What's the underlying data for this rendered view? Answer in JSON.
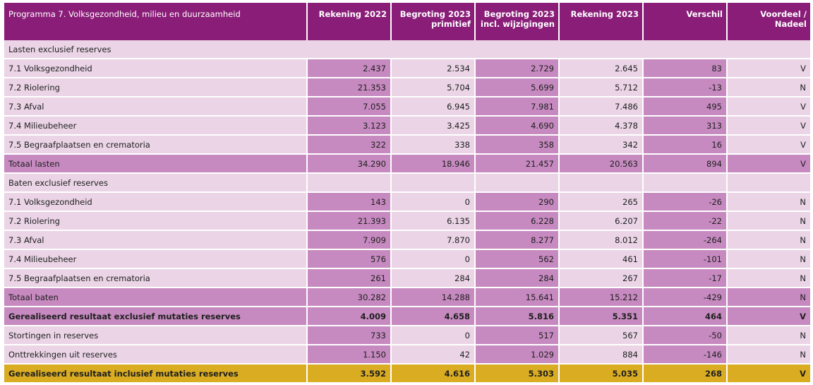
{
  "table": {
    "header": {
      "title": "Programma 7. Volksgezondheid, milieu en duurzaamheid",
      "col1": "Rekening 2022",
      "col2_line1": "Begroting 2023",
      "col2_line2": "primitief",
      "col3_line1": "Begroting 2023",
      "col3_line2": "incl. wijzigingen",
      "col4": "Rekening 2023",
      "col5": "Verschil",
      "col6": "Voordeel / Nadeel"
    },
    "lasten_header": "Lasten exclusief reserves",
    "lasten": [
      {
        "label": "7.1 Volksgezondheid",
        "r2022": "2.437",
        "b2023p": "2.534",
        "b2023w": "2.729",
        "r2023": "2.645",
        "verschil": "83",
        "vn": "V"
      },
      {
        "label": "7.2 Riolering",
        "r2022": "21.353",
        "b2023p": "5.704",
        "b2023w": "5.699",
        "r2023": "5.712",
        "verschil": "-13",
        "vn": "N"
      },
      {
        "label": "7.3 Afval",
        "r2022": "7.055",
        "b2023p": "6.945",
        "b2023w": "7.981",
        "r2023": "7.486",
        "verschil": "495",
        "vn": "V"
      },
      {
        "label": "7.4 Milieubeheer",
        "r2022": "3.123",
        "b2023p": "3.425",
        "b2023w": "4.690",
        "r2023": "4.378",
        "verschil": "313",
        "vn": "V"
      },
      {
        "label": "7.5 Begraafplaatsen en crematoria",
        "r2022": "322",
        "b2023p": "338",
        "b2023w": "358",
        "r2023": "342",
        "verschil": "16",
        "vn": "V"
      }
    ],
    "totaal_lasten": {
      "label": "Totaal lasten",
      "r2022": "34.290",
      "b2023p": "18.946",
      "b2023w": "21.457",
      "r2023": "20.563",
      "verschil": "894",
      "vn": "V"
    },
    "baten_header": "Baten exclusief reserves",
    "baten": [
      {
        "label": "7.1 Volksgezondheid",
        "r2022": "143",
        "b2023p": "0",
        "b2023w": "290",
        "r2023": "265",
        "verschil": "-26",
        "vn": "N"
      },
      {
        "label": "7.2 Riolering",
        "r2022": "21.393",
        "b2023p": "6.135",
        "b2023w": "6.228",
        "r2023": "6.207",
        "verschil": "-22",
        "vn": "N"
      },
      {
        "label": "7.3 Afval",
        "r2022": "7.909",
        "b2023p": "7.870",
        "b2023w": "8.277",
        "r2023": "8.012",
        "verschil": "-264",
        "vn": "N"
      },
      {
        "label": "7.4 Milieubeheer",
        "r2022": "576",
        "b2023p": "0",
        "b2023w": "562",
        "r2023": "461",
        "verschil": "-101",
        "vn": "N"
      },
      {
        "label": "7.5 Begraafplaatsen en crematoria",
        "r2022": "261",
        "b2023p": "284",
        "b2023w": "284",
        "r2023": "267",
        "verschil": "-17",
        "vn": "N"
      }
    ],
    "totaal_baten": {
      "label": "Totaal baten",
      "r2022": "30.282",
      "b2023p": "14.288",
      "b2023w": "15.641",
      "r2023": "15.212",
      "verschil": "-429",
      "vn": "N"
    },
    "resultaat_excl": {
      "label": "Gerealiseerd resultaat exclusief mutaties reserves",
      "r2022": "4.009",
      "b2023p": "4.658",
      "b2023w": "5.816",
      "r2023": "5.351",
      "verschil": "464",
      "vn": "V"
    },
    "stortingen": {
      "label": "Stortingen in reserves",
      "r2022": "733",
      "b2023p": "0",
      "b2023w": "517",
      "r2023": "567",
      "verschil": "-50",
      "vn": "N"
    },
    "onttrekkingen": {
      "label": "Onttrekkingen uit reserves",
      "r2022": "1.150",
      "b2023p": "42",
      "b2023w": "1.029",
      "r2023": "884",
      "verschil": "-146",
      "vn": "N"
    },
    "resultaat_incl": {
      "label": "Gerealiseerd resultaat inclusief mutaties reserves",
      "r2022": "3.592",
      "b2023p": "4.616",
      "b2023w": "5.303",
      "r2023": "5.035",
      "verschil": "268",
      "vn": "V"
    }
  },
  "colors": {
    "header_bg": "#8a1d78",
    "light_row": "#ead4e6",
    "highlight": "#c68ac0",
    "final_row": "#d9ac22"
  }
}
